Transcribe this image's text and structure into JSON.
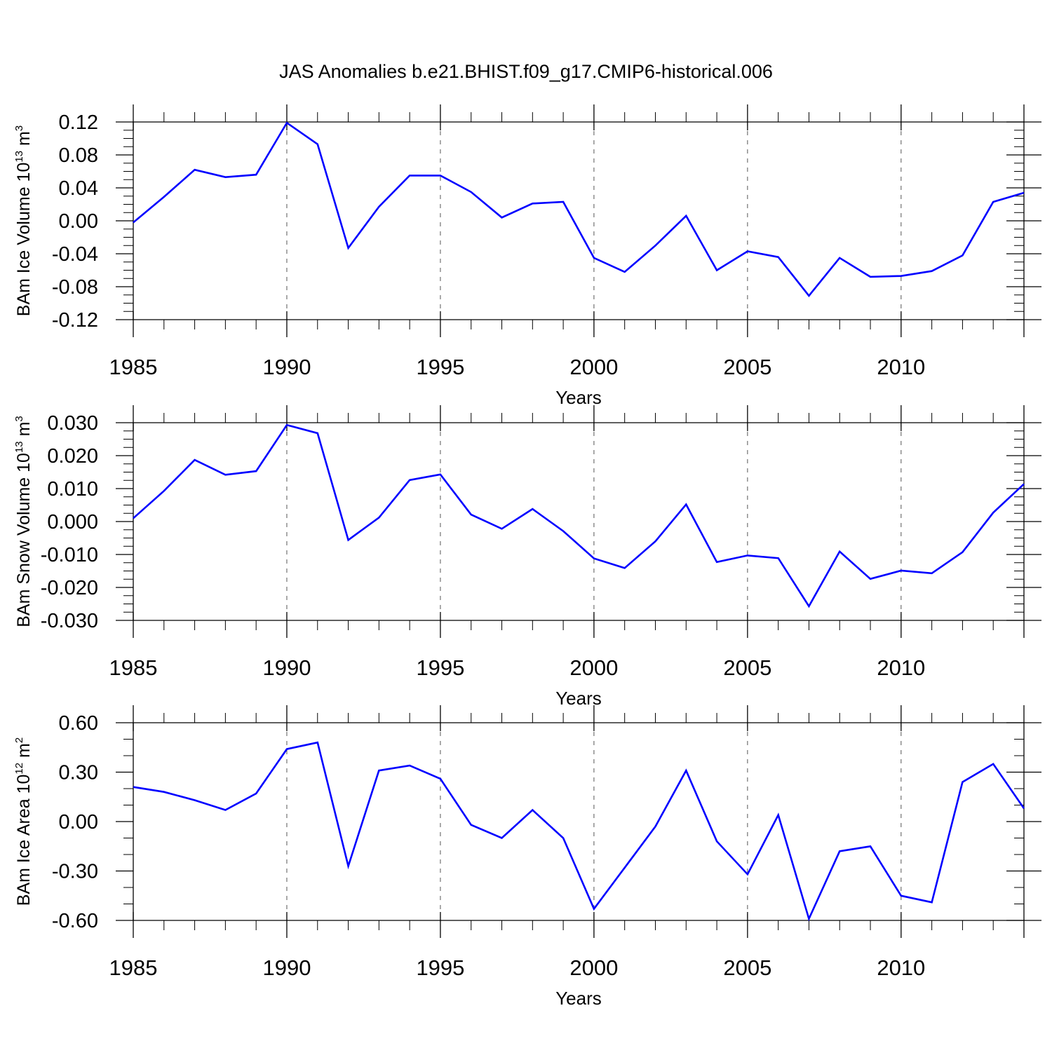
{
  "title": "JAS Anomalies b.e21.BHIST.f09_g17.CMIP6-historical.006",
  "colors": {
    "line": "#0000ff",
    "axis": "#000000",
    "grid": "#555555"
  },
  "chart_data": [
    {
      "type": "line",
      "id": "ice-volume",
      "ylabel": {
        "main": "BAm Ice Volume 10",
        "exp": "13",
        "unit": " m",
        "unit_exp": "3"
      },
      "xlabel": "Years",
      "xlim": [
        1985,
        2014
      ],
      "ylim": [
        -0.12,
        0.12
      ],
      "yticks": [
        -0.12,
        -0.08,
        -0.04,
        0.0,
        0.04,
        0.08,
        0.12
      ],
      "ytick_labels": [
        "-0.12",
        "-0.08",
        "-0.04",
        "0.00",
        "0.04",
        "0.08",
        "0.12"
      ],
      "ytick_minor_step": 0.01,
      "xticks": [
        1985,
        1990,
        1995,
        2000,
        2005,
        2010
      ],
      "xtick_labels": [
        "1985",
        "1990",
        "1995",
        "2000",
        "2005",
        "2010"
      ],
      "vgrid": [
        1990,
        1995,
        2000,
        2005,
        2010
      ],
      "x": [
        1985,
        1986,
        1987,
        1988,
        1989,
        1990,
        1991,
        1992,
        1993,
        1994,
        1995,
        1996,
        1997,
        1998,
        1999,
        2000,
        2001,
        2002,
        2003,
        2004,
        2005,
        2006,
        2007,
        2008,
        2009,
        2010,
        2011,
        2012,
        2013,
        2014
      ],
      "series": [
        {
          "name": "ice volume",
          "values": [
            -0.002,
            0.029,
            0.062,
            0.053,
            0.056,
            0.119,
            0.093,
            -0.033,
            0.017,
            0.055,
            0.055,
            0.035,
            0.004,
            0.021,
            0.023,
            -0.045,
            -0.062,
            -0.03,
            0.006,
            -0.06,
            -0.037,
            -0.044,
            -0.091,
            -0.045,
            -0.068,
            -0.067,
            -0.061,
            -0.042,
            0.023,
            0.034
          ]
        }
      ]
    },
    {
      "type": "line",
      "id": "snow-volume",
      "ylabel": {
        "main": "BAm Snow Volume 10",
        "exp": "13",
        "unit": " m",
        "unit_exp": "3"
      },
      "xlabel": "Years",
      "xlim": [
        1985,
        2014
      ],
      "ylim": [
        -0.03,
        0.03
      ],
      "yticks": [
        -0.03,
        -0.02,
        -0.01,
        0.0,
        0.01,
        0.02,
        0.03
      ],
      "ytick_labels": [
        "-0.030",
        "-0.020",
        "-0.010",
        "0.000",
        "0.010",
        "0.020",
        "0.030"
      ],
      "ytick_minor_step": 0.0025,
      "xticks": [
        1985,
        1990,
        1995,
        2000,
        2005,
        2010
      ],
      "xtick_labels": [
        "1985",
        "1990",
        "1995",
        "2000",
        "2005",
        "2010"
      ],
      "vgrid": [
        1990,
        1995,
        2000,
        2005,
        2010
      ],
      "x": [
        1985,
        1986,
        1987,
        1988,
        1989,
        1990,
        1991,
        1992,
        1993,
        1994,
        1995,
        1996,
        1997,
        1998,
        1999,
        2000,
        2001,
        2002,
        2003,
        2004,
        2005,
        2006,
        2007,
        2008,
        2009,
        2010,
        2011,
        2012,
        2013,
        2014
      ],
      "series": [
        {
          "name": "snow volume",
          "values": [
            0.001,
            0.0093,
            0.0187,
            0.0142,
            0.0153,
            0.0293,
            0.0268,
            -0.0056,
            0.0012,
            0.0126,
            0.0143,
            0.0021,
            -0.0022,
            0.0038,
            -0.0029,
            -0.0112,
            -0.0141,
            -0.006,
            0.0052,
            -0.0123,
            -0.0103,
            -0.0111,
            -0.0257,
            -0.0091,
            -0.0174,
            -0.0149,
            -0.0157,
            -0.0093,
            0.0027,
            0.0114
          ]
        }
      ]
    },
    {
      "type": "line",
      "id": "ice-area",
      "ylabel": {
        "main": "BAm Ice Area 10",
        "exp": "12",
        "unit": " m",
        "unit_exp": "2"
      },
      "xlabel": "Years",
      "xlim": [
        1985,
        2014
      ],
      "ylim": [
        -0.6,
        0.6
      ],
      "yticks": [
        -0.6,
        -0.3,
        0.0,
        0.3,
        0.6
      ],
      "ytick_labels": [
        "-0.60",
        "-0.30",
        "0.00",
        "0.30",
        "0.60"
      ],
      "ytick_minor_step": 0.1,
      "xticks": [
        1985,
        1990,
        1995,
        2000,
        2005,
        2010
      ],
      "xtick_labels": [
        "1985",
        "1990",
        "1995",
        "2000",
        "2005",
        "2010"
      ],
      "vgrid": [
        1990,
        1995,
        2000,
        2005,
        2010
      ],
      "x": [
        1985,
        1986,
        1987,
        1988,
        1989,
        1990,
        1991,
        1992,
        1993,
        1994,
        1995,
        1996,
        1997,
        1998,
        1999,
        2000,
        2001,
        2002,
        2003,
        2004,
        2005,
        2006,
        2007,
        2008,
        2009,
        2010,
        2011,
        2012,
        2013,
        2014
      ],
      "series": [
        {
          "name": "ice area",
          "values": [
            0.21,
            0.18,
            0.13,
            0.07,
            0.17,
            0.44,
            0.48,
            -0.27,
            0.31,
            0.34,
            0.26,
            -0.02,
            -0.1,
            0.07,
            -0.1,
            -0.53,
            -0.28,
            -0.03,
            0.31,
            -0.12,
            -0.32,
            0.04,
            -0.59,
            -0.18,
            -0.15,
            -0.45,
            -0.49,
            0.24,
            0.35,
            0.08
          ]
        }
      ]
    }
  ]
}
